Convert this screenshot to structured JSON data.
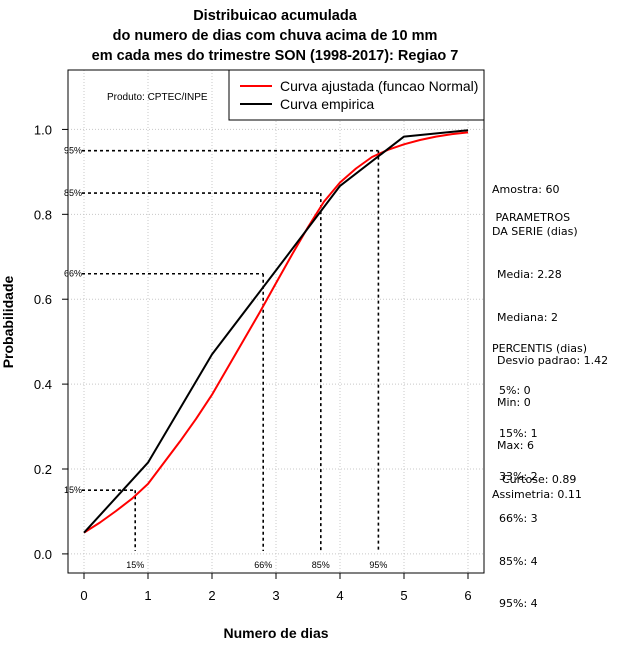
{
  "chart_data": {
    "type": "line",
    "title": [
      "Distribuicao acumulada",
      "do numero de dias com chuva acima de 10 mm",
      "em cada mes do trimestre SON (1998-2017): Regiao 7"
    ],
    "xlabel": "Numero de dias",
    "ylabel": "Probabilidade",
    "xlim": [
      -0.25,
      6.25
    ],
    "ylim": [
      -0.045,
      1.14
    ],
    "x_ticks": [
      "0",
      "1",
      "2",
      "3",
      "4",
      "5",
      "6"
    ],
    "y_ticks": [
      "0.0",
      "0.2",
      "0.4",
      "0.6",
      "0.8",
      "1.0"
    ],
    "grid": true,
    "legend_position": "top-right",
    "producer_label": "Produto: CPTEC/INPE",
    "series": [
      {
        "name": "Curva ajustada (funcao Normal)",
        "color": "#ff0000",
        "x": [
          0,
          0.25,
          0.5,
          0.75,
          1,
          1.25,
          1.5,
          1.75,
          2,
          2.25,
          2.5,
          2.75,
          3,
          3.25,
          3.5,
          3.75,
          4,
          4.25,
          4.5,
          4.75,
          5,
          5.25,
          5.5,
          5.75,
          6
        ],
        "y": [
          0.05,
          0.074,
          0.101,
          0.13,
          0.165,
          0.215,
          0.265,
          0.318,
          0.375,
          0.44,
          0.505,
          0.57,
          0.638,
          0.705,
          0.77,
          0.83,
          0.875,
          0.908,
          0.935,
          0.952,
          0.965,
          0.975,
          0.983,
          0.989,
          0.993
        ]
      },
      {
        "name": "Curva empirica",
        "color": "#000000",
        "x": [
          0,
          1,
          2,
          3,
          4,
          5,
          6
        ],
        "y": [
          0.05,
          0.215,
          0.47,
          0.668,
          0.867,
          0.983,
          0.998
        ]
      }
    ],
    "percentile_guides": [
      {
        "label": "15%",
        "x": 0.8,
        "y": 0.15
      },
      {
        "label": "66%",
        "x": 2.8,
        "y": 0.66
      },
      {
        "label": "85%",
        "x": 3.7,
        "y": 0.85
      },
      {
        "label": "95%",
        "x": 4.6,
        "y": 0.95
      }
    ]
  },
  "sidebar": {
    "sample": "Amostra: 60",
    "params_title": " PARAMETROS\nDA SERIE (dias)",
    "params": [
      "Media: 2.28",
      "Mediana: 2",
      "Desvio padrao: 1.42",
      "Min: 0",
      "Max: 6"
    ],
    "percentis_title": "PERCENTIS (dias)",
    "percentis": [
      "5%: 0",
      "15%: 1",
      "33%: 2",
      "66%: 3",
      "85%: 4",
      "95%: 4"
    ],
    "curtose": "Curtose: 0.89",
    "assimetria": "Assimetria: 0.11"
  }
}
